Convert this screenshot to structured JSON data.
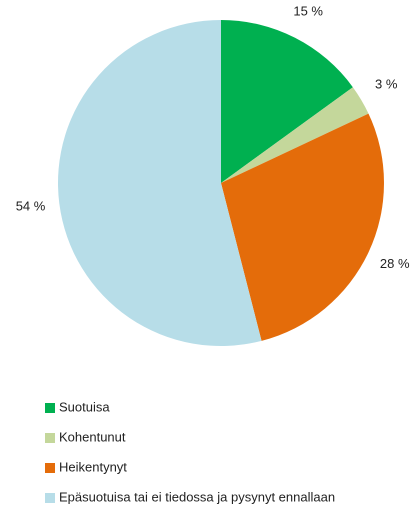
{
  "chart_data": {
    "type": "pie",
    "categories": [
      "Suotuisa",
      "Kohentunut",
      "Heikentynyt",
      "Epäsuotuisa tai ei tiedossa ja pysynyt ennallaan"
    ],
    "values": [
      15,
      3,
      28,
      54
    ],
    "value_labels": [
      "15 %",
      "3 %",
      "28 %",
      "54 %"
    ],
    "colors": [
      "#00b050",
      "#c4d79b",
      "#e46c0a",
      "#b7dde8"
    ]
  }
}
